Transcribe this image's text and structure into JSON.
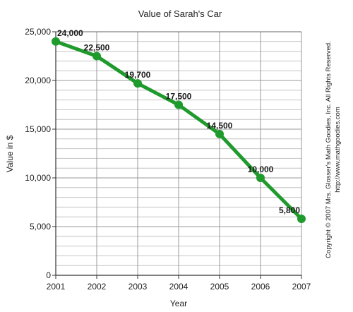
{
  "chart_data": {
    "type": "line",
    "title": "Value of Sarah's Car",
    "xlabel": "Year",
    "ylabel": "Value in $",
    "categories": [
      "2001",
      "2002",
      "2003",
      "2004",
      "2005",
      "2006",
      "2007"
    ],
    "values": [
      24000,
      22500,
      19700,
      17500,
      14500,
      10000,
      5800
    ],
    "data_labels": [
      "24,000",
      "22,500",
      "19,700",
      "17,500",
      "14,500",
      "10,000",
      "5,800"
    ],
    "ylim": [
      0,
      25000
    ],
    "yticks": [
      0,
      5000,
      10000,
      15000,
      20000,
      25000
    ],
    "ytick_labels": [
      "0",
      "5,000",
      "10,000",
      "15,000",
      "20,000",
      "25,000"
    ],
    "grid": true,
    "line_color": "#1f9a2c",
    "marker_color": "#1f9a2c"
  },
  "copyright": {
    "line1": "Copyright © 2007 Mrs. Glosser's Math Goodies, Inc. All Rights Reserved.",
    "line2": "http://www.mathgoodies.com"
  }
}
